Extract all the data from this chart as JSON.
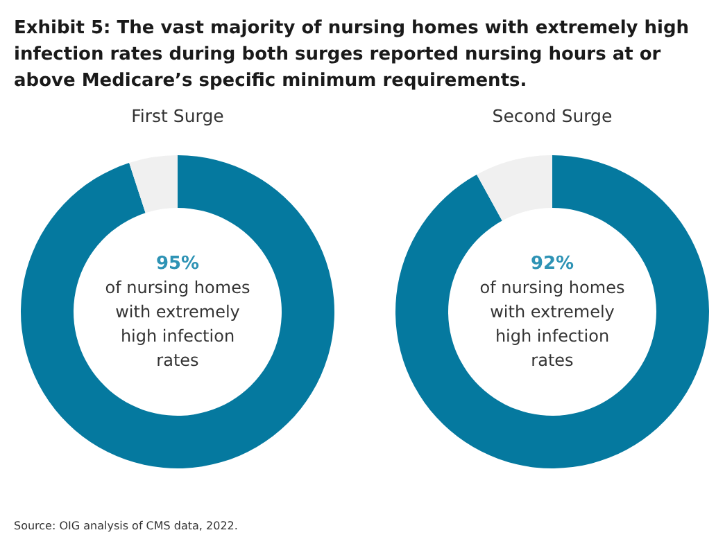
{
  "chart_data": [
    {
      "type": "other",
      "title": "Exhibit 5: The vast majority of nursing homes with extremely high infection rates during both surges reported nursing hours at or above Medicare’s specific minimum requirements.",
      "annotations": [
        "Source: OIG analysis of CMS data, 2022."
      ]
    },
    {
      "type": "donut",
      "title": "First Surge",
      "categories": [
        null,
        null
      ],
      "values": [
        95,
        5
      ],
      "colors": [
        "#05799f",
        "#f0f0f0"
      ],
      "value_labels": [
        "95%",
        null
      ],
      "annotations": [
        "of nursing homes with extremely high infection rates"
      ]
    },
    {
      "type": "donut",
      "title": "Second Surge",
      "categories": [
        null,
        null
      ],
      "values": [
        92,
        8
      ],
      "colors": [
        "#05799f",
        "#f0f0f0"
      ],
      "value_labels": [
        "92%",
        null
      ],
      "annotations": [
        "of nursing homes with extremely high infection rates"
      ]
    }
  ]
}
